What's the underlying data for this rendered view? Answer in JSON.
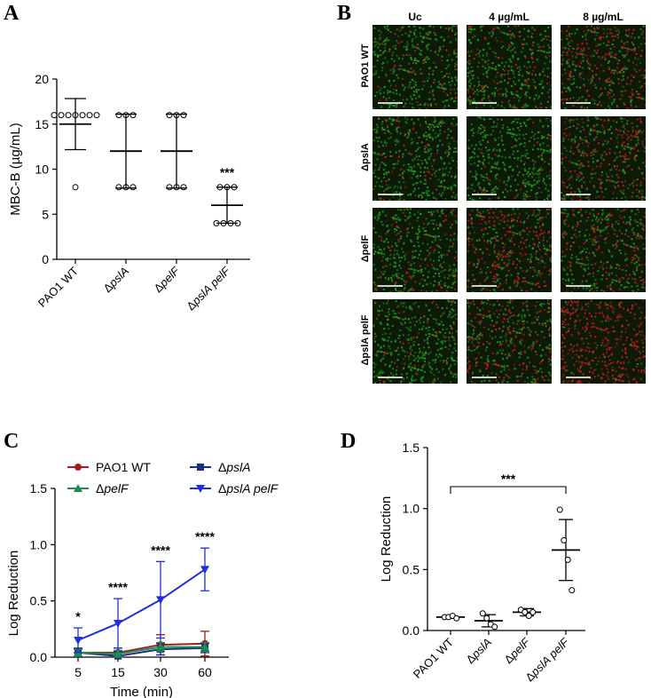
{
  "panels": {
    "A": "A",
    "B": "B",
    "C": "C",
    "D": "D"
  },
  "chart_data": [
    {
      "id": "A",
      "type": "scatter",
      "ylabel": "MBC-B (µg/mL)",
      "ylim": [
        0,
        20
      ],
      "yticks": [
        0,
        5,
        10,
        15,
        20
      ],
      "categories": [
        "PAO1 WT",
        "ΔpslA",
        "ΔpelF",
        "ΔpslA pelF"
      ],
      "points": [
        [
          16,
          16,
          16,
          16,
          16,
          16,
          16,
          8
        ],
        [
          16,
          16,
          16,
          8,
          8,
          8
        ],
        [
          16,
          16,
          16,
          8,
          8,
          8
        ],
        [
          8,
          8,
          8,
          4,
          4,
          4,
          4
        ]
      ],
      "mean": [
        15,
        12,
        12,
        6
      ],
      "sd": [
        2.83,
        4.1,
        4.1,
        2.0
      ],
      "annotations": [
        {
          "category": "ΔpslA pelF",
          "text": "***"
        }
      ]
    },
    {
      "id": "C",
      "type": "line",
      "xlabel": "Time (min)",
      "ylabel": "Log Reduction",
      "x": [
        5,
        15,
        30,
        60
      ],
      "ylim": [
        0,
        1.5
      ],
      "yticks": [
        "0.0",
        "0.5",
        "1.0",
        "1.5"
      ],
      "series": [
        {
          "name": "PAO1 WT",
          "color": "#a31d1d",
          "marker": "circle",
          "values": [
            0.04,
            0.04,
            0.11,
            0.12
          ],
          "err": [
            0.04,
            0.04,
            0.09,
            0.11
          ]
        },
        {
          "name": "ΔpslA",
          "color": "#1a2f86",
          "marker": "square",
          "values": [
            0.04,
            0.01,
            0.07,
            0.08
          ],
          "err": [
            0.04,
            0.04,
            0.05,
            0.04
          ]
        },
        {
          "name": "ΔpelF",
          "color": "#1f8b4c",
          "marker": "triangle-up",
          "values": [
            0.04,
            0.03,
            0.09,
            0.09
          ],
          "err": [
            0.03,
            0.03,
            0.04,
            0.04
          ]
        },
        {
          "name": "ΔpslA pelF",
          "color": "#1f2fe0",
          "marker": "triangle-down",
          "values": [
            0.15,
            0.3,
            0.51,
            0.78
          ],
          "err": [
            0.11,
            0.22,
            0.34,
            0.19
          ]
        }
      ],
      "annotations": [
        "*",
        "****",
        "****",
        "****"
      ]
    },
    {
      "id": "D",
      "type": "scatter",
      "ylabel": "Log Reduction",
      "ylim": [
        0,
        1.5
      ],
      "yticks": [
        "0.0",
        "0.5",
        "1.0",
        "1.5"
      ],
      "categories": [
        "PAO1 WT",
        "ΔpslA",
        "ΔpelF",
        "ΔpslA pelF"
      ],
      "points": [
        [
          0.11,
          0.11,
          0.12,
          0.1
        ],
        [
          0.14,
          0.1,
          0.05,
          0.03
        ],
        [
          0.17,
          0.15,
          0.12,
          0.15
        ],
        [
          0.99,
          0.74,
          0.58,
          0.33
        ]
      ],
      "mean": [
        0.11,
        0.08,
        0.15,
        0.66
      ],
      "sd": [
        0.01,
        0.05,
        0.03,
        0.25
      ],
      "comparison": {
        "from": "PAO1 WT",
        "to": "ΔpslA pelF",
        "text": "***"
      }
    }
  ],
  "micrographs": {
    "columns": [
      "Uc",
      "4 µg/mL",
      "8 µg/mL"
    ],
    "rows": [
      "PAO1 WT",
      "ΔpslA",
      "ΔpelF",
      "ΔpslA pelF"
    ]
  },
  "colors": {
    "green": "#1f9d1f",
    "red": "#c81e1e",
    "tile_bg": "#0e1a08"
  }
}
